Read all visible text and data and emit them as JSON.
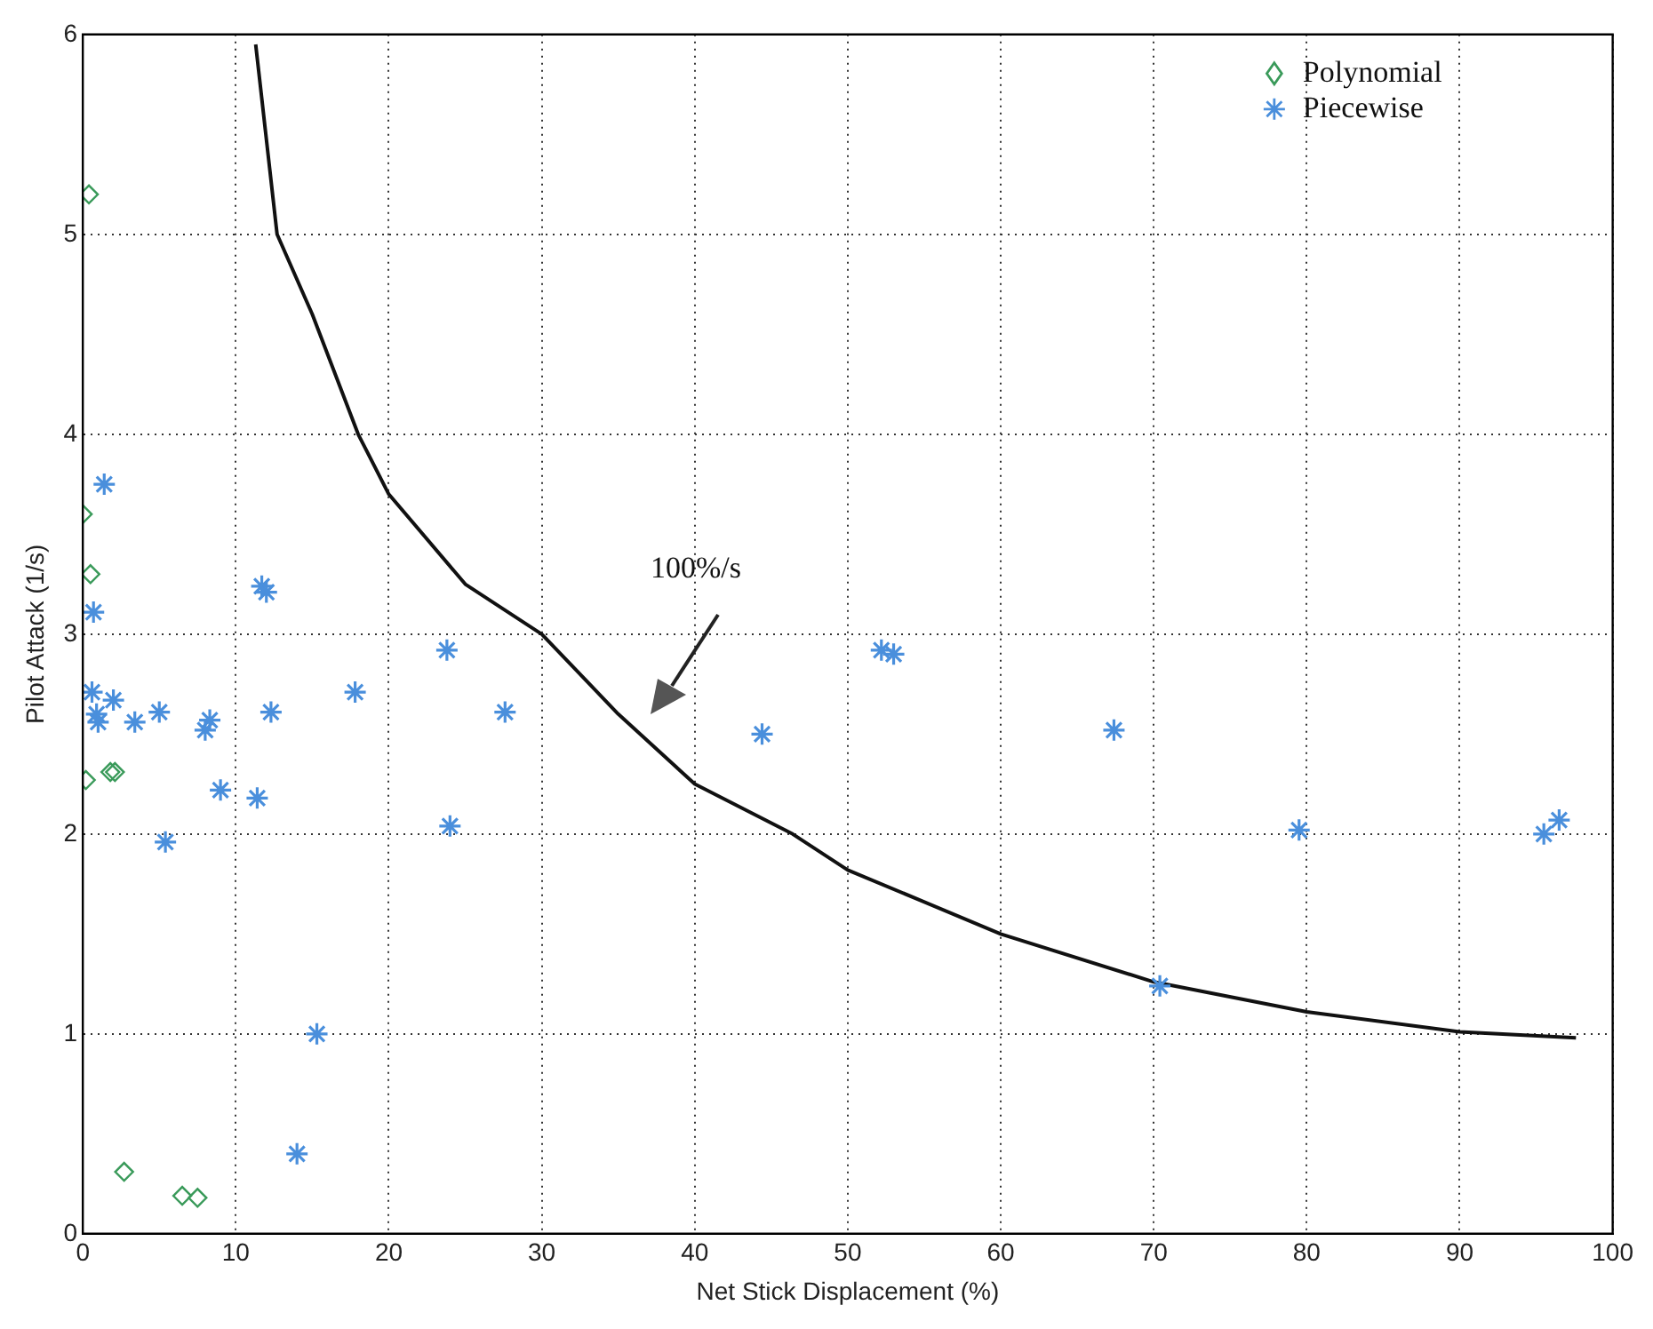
{
  "chart_data": {
    "type": "scatter",
    "xlabel": "Net Stick Displacement (%)",
    "ylabel": "Pilot Attack (1/s)",
    "xlim": [
      0,
      100
    ],
    "xticks": [
      0,
      10,
      20,
      30,
      40,
      50,
      60,
      70,
      80,
      90,
      100
    ],
    "ylim": [
      0,
      6
    ],
    "yticks": [
      0,
      1,
      2,
      3,
      4,
      5,
      6
    ],
    "grid": true,
    "legend": "top right",
    "series": [
      {
        "name": "Polynomial",
        "marker": "diamond",
        "color": "#3a9a5a",
        "x": [
          0.4,
          0,
          0.5,
          0.2,
          1.8,
          2.1,
          2.7,
          6.5,
          7.5
        ],
        "values": [
          5.2,
          3.6,
          3.3,
          2.27,
          2.31,
          2.31,
          0.31,
          0.19,
          0.18
        ]
      },
      {
        "name": "Piecewise",
        "marker": "cross",
        "color": "#4a8fdc",
        "x": [
          1.4,
          0.7,
          11.7,
          12,
          17.8,
          0.6,
          0.9,
          1,
          2,
          3.4,
          5,
          8.3,
          8,
          12.3,
          9,
          11.4,
          5.4,
          24,
          15.3,
          14,
          23.8,
          27.6,
          44.4,
          52.2,
          53,
          67.4,
          79.5,
          70.4,
          95.5,
          96.5
        ],
        "values": [
          3.75,
          3.11,
          3.24,
          3.21,
          2.71,
          2.71,
          2.6,
          2.56,
          2.67,
          2.56,
          2.61,
          2.57,
          2.52,
          2.61,
          2.22,
          2.18,
          1.96,
          2.04,
          1.0,
          0.4,
          2.92,
          2.61,
          2.5,
          2.92,
          2.9,
          2.52,
          2.02,
          1.24,
          2.0,
          2.07
        ]
      },
      {
        "type": "line",
        "marker": "none",
        "color": "#111111",
        "x": [
          11.3,
          12.7,
          15,
          18,
          20,
          25,
          30,
          35,
          40,
          46.4,
          50,
          60,
          70,
          80,
          90,
          97.6
        ],
        "values": [
          5.95,
          5.0,
          4.6,
          4.0,
          3.7,
          3.25,
          3.0,
          2.6,
          2.25,
          2.0,
          1.82,
          1.5,
          1.26,
          1.11,
          1.01,
          0.98
        ]
      }
    ],
    "annotations": [
      "100%/s"
    ]
  }
}
